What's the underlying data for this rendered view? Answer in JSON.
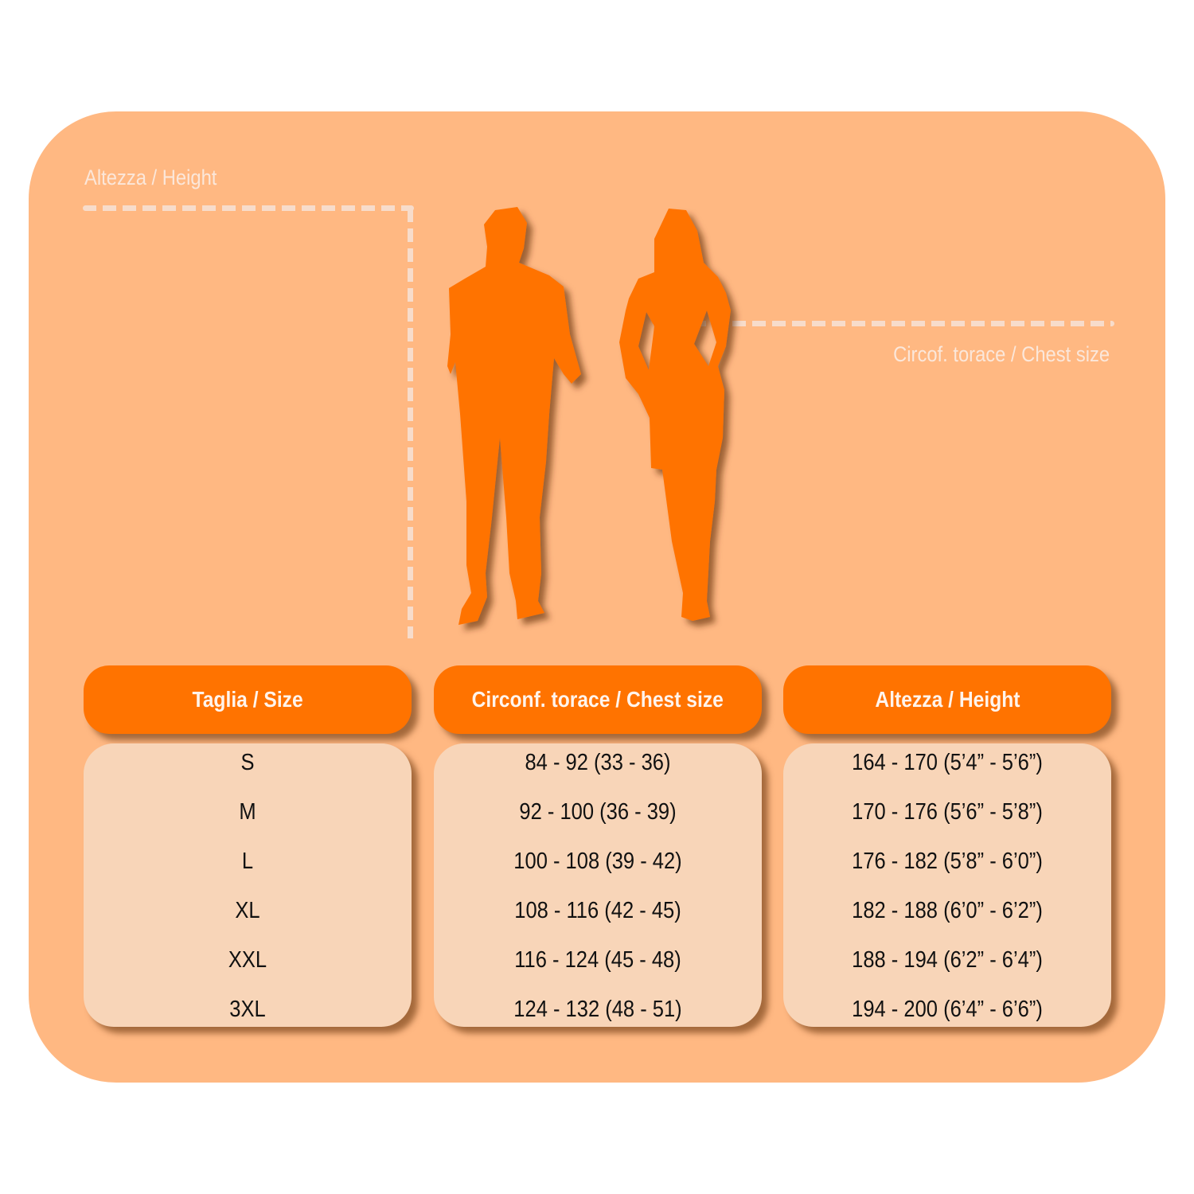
{
  "labels": {
    "height": "Altezza / Height",
    "chest": "Circof. torace / Chest size"
  },
  "colors": {
    "panel": "#FFB882",
    "accent": "#FF7300",
    "cell": "#F8D5B8",
    "dash": "#F7DCCB"
  },
  "icons": [
    "man-silhouette-icon",
    "woman-silhouette-icon"
  ],
  "table": {
    "columns": [
      {
        "header": "Taglia / Size",
        "values": [
          "S",
          "M",
          "L",
          "XL",
          "XXL",
          "3XL"
        ]
      },
      {
        "header": "Circonf. torace / Chest size",
        "values": [
          "84 - 92 (33 - 36)",
          "92 - 100 (36 - 39)",
          "100 - 108 (39 - 42)",
          "108 - 116 (42 - 45)",
          "116 - 124 (45 - 48)",
          "124 - 132 (48 - 51)"
        ]
      },
      {
        "header": "Altezza / Height",
        "values": [
          "164 - 170 (5’4” - 5’6”)",
          "170 - 176 (5’6” - 5’8”)",
          "176 - 182 (5’8” - 6’0”)",
          "182 - 188 (6’0” - 6’2”)",
          "188 - 194 (6’2” - 6’4”)",
          "194 - 200 (6’4” - 6’6”)"
        ]
      }
    ]
  }
}
